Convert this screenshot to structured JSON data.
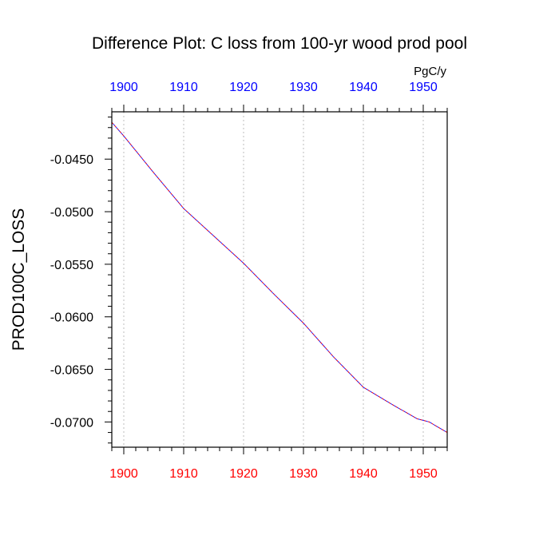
{
  "chart_data": {
    "type": "line",
    "title": "Difference Plot: C loss from 100-yr wood prod pool",
    "ylabel": "PROD100C_LOSS",
    "units": "PgC/y",
    "xlabel": "",
    "xlim": [
      1898,
      1954
    ],
    "ylim": [
      -0.0724,
      -0.0405
    ],
    "x_ticks": [
      "1900",
      "1910",
      "1920",
      "1930",
      "1940",
      "1950"
    ],
    "y_ticks": [
      "-0.0450",
      "-0.0500",
      "-0.0550",
      "-0.0600",
      "-0.0650",
      "-0.0700"
    ],
    "grid": "vertical dotted",
    "colors": {
      "bottom_ticks": "#ff0000",
      "top_ticks": "#0000ff",
      "line1": "#ff0000",
      "line2": "#0000ff"
    },
    "series": [
      {
        "name": "difference",
        "x": [
          1898,
          1900,
          1905,
          1910,
          1915,
          1920,
          1925,
          1930,
          1935,
          1940,
          1945,
          1949,
          1951,
          1954
        ],
        "values": [
          -0.0415,
          -0.0428,
          -0.0463,
          -0.0497,
          -0.0523,
          -0.0549,
          -0.0578,
          -0.0606,
          -0.0638,
          -0.0667,
          -0.0684,
          -0.0697,
          -0.07,
          -0.071
        ]
      }
    ]
  }
}
